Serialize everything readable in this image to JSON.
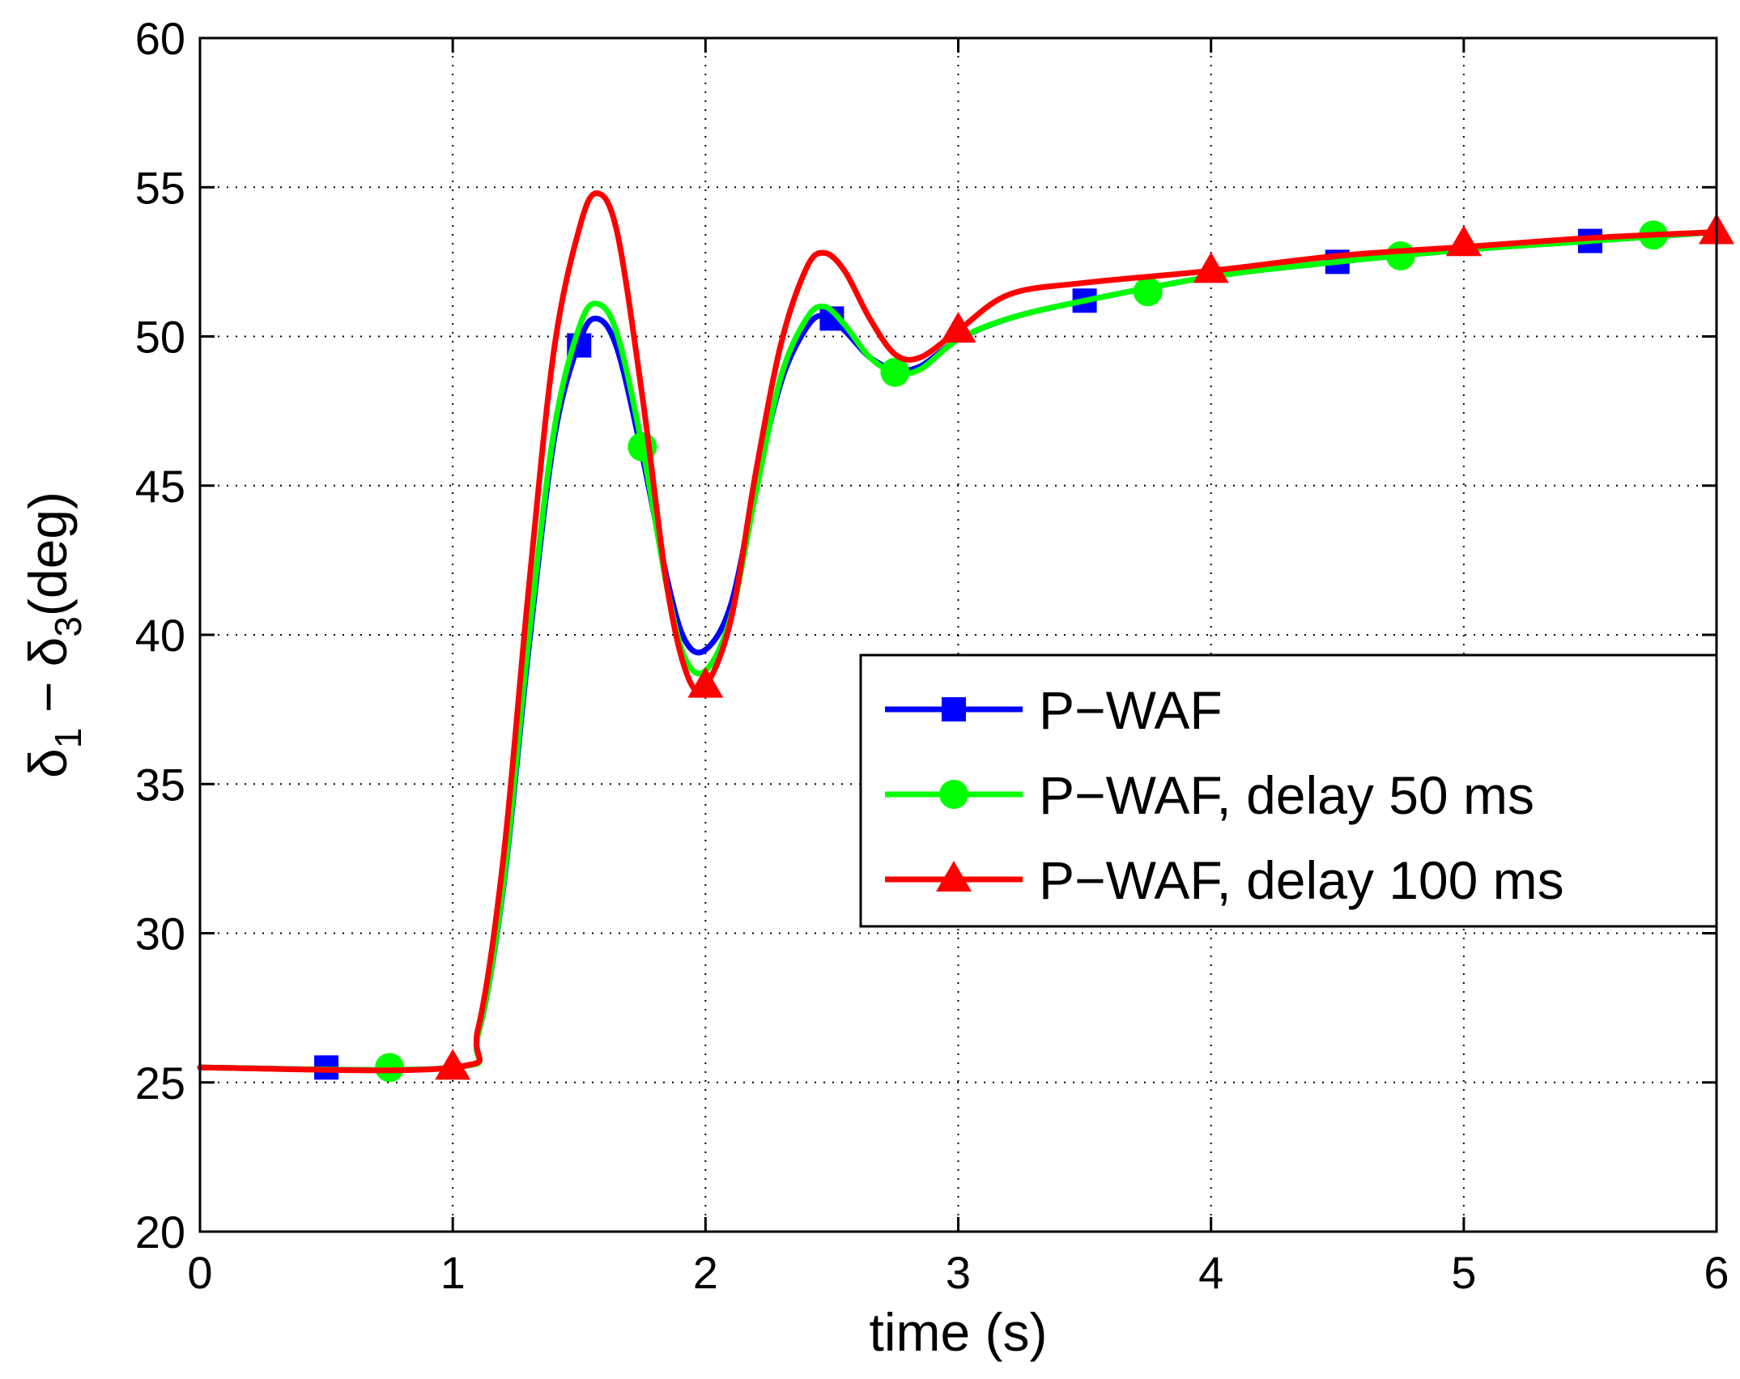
{
  "chart_data": {
    "type": "line",
    "title": "",
    "xlabel": "time (s)",
    "ylabel": {
      "base": "δ",
      "sub1": "1",
      "minus": " − ",
      "base2": "δ",
      "sub2": "3",
      "unit": "(deg)"
    },
    "xlim": [
      0,
      6
    ],
    "ylim": [
      20,
      60
    ],
    "xticks": [
      0,
      1,
      2,
      3,
      4,
      5,
      6
    ],
    "yticks": [
      20,
      25,
      30,
      35,
      40,
      45,
      50,
      55,
      60
    ],
    "grid": true,
    "legend_position": "right",
    "series": [
      {
        "name": "P−WAF",
        "color": "#0000ff",
        "marker": "square",
        "x": [
          0,
          1.0,
          1.1,
          1.2,
          1.3,
          1.4,
          1.5,
          1.57,
          1.65,
          1.75,
          1.85,
          1.92,
          2.0,
          2.1,
          2.2,
          2.3,
          2.4,
          2.47,
          2.55,
          2.65,
          2.75,
          2.85,
          3.0,
          3.2,
          3.5,
          4.0,
          4.5,
          5.0,
          5.5,
          6.0
        ],
        "y": [
          25.5,
          25.5,
          26.6,
          31.5,
          39.5,
          46.5,
          49.8,
          50.6,
          49.6,
          46.0,
          41.8,
          39.8,
          39.5,
          41.0,
          45.0,
          48.5,
          50.3,
          50.7,
          50.2,
          49.3,
          48.9,
          49.0,
          49.9,
          50.6,
          51.2,
          52.0,
          52.5,
          52.9,
          53.2,
          53.5
        ],
        "markers_x": [
          0.5,
          1.5,
          2.5,
          3.5,
          4.5,
          5.5
        ],
        "markers_y": [
          25.5,
          49.7,
          50.6,
          51.2,
          52.5,
          53.2
        ]
      },
      {
        "name": "P−WAF, delay 50 ms",
        "color": "#00ff00",
        "marker": "circle",
        "x": [
          0,
          1.0,
          1.1,
          1.2,
          1.3,
          1.4,
          1.5,
          1.57,
          1.65,
          1.75,
          1.85,
          1.92,
          2.0,
          2.1,
          2.2,
          2.3,
          2.4,
          2.47,
          2.55,
          2.65,
          2.75,
          2.85,
          3.0,
          3.2,
          3.5,
          4.0,
          4.5,
          5.0,
          5.5,
          6.0
        ],
        "y": [
          25.5,
          25.5,
          26.6,
          31.6,
          39.8,
          46.8,
          50.3,
          51.1,
          50.1,
          46.3,
          41.5,
          39.2,
          38.8,
          40.6,
          44.8,
          48.7,
          50.6,
          51.0,
          50.4,
          49.3,
          48.8,
          48.9,
          49.9,
          50.6,
          51.2,
          52.0,
          52.5,
          52.9,
          53.2,
          53.5
        ],
        "markers_x": [
          0.75,
          1.75,
          2.75,
          3.75,
          4.75,
          5.75
        ],
        "markers_y": [
          25.5,
          46.3,
          48.8,
          51.5,
          52.7,
          53.4
        ]
      },
      {
        "name": "P−WAF, delay 100 ms",
        "color": "#ff0000",
        "marker": "triangle",
        "x": [
          0,
          1.0,
          1.1,
          1.2,
          1.3,
          1.4,
          1.5,
          1.57,
          1.65,
          1.75,
          1.85,
          1.93,
          2.0,
          2.1,
          2.2,
          2.3,
          2.4,
          2.47,
          2.55,
          2.65,
          2.75,
          2.85,
          3.0,
          3.2,
          3.5,
          4.0,
          4.5,
          5.0,
          5.5,
          6.0
        ],
        "y": [
          25.5,
          25.5,
          26.8,
          32.5,
          41.5,
          49.5,
          53.6,
          54.8,
          53.5,
          48.0,
          41.5,
          38.6,
          38.3,
          40.5,
          45.5,
          49.8,
          52.3,
          52.8,
          52.2,
          50.6,
          49.4,
          49.3,
          50.2,
          51.4,
          51.8,
          52.2,
          52.7,
          53.0,
          53.3,
          53.5
        ],
        "markers_x": [
          1.0,
          2.0,
          3.0,
          4.0,
          5.0,
          6.0
        ],
        "markers_y": [
          25.5,
          38.3,
          50.2,
          52.2,
          53.1,
          53.5
        ]
      }
    ]
  }
}
